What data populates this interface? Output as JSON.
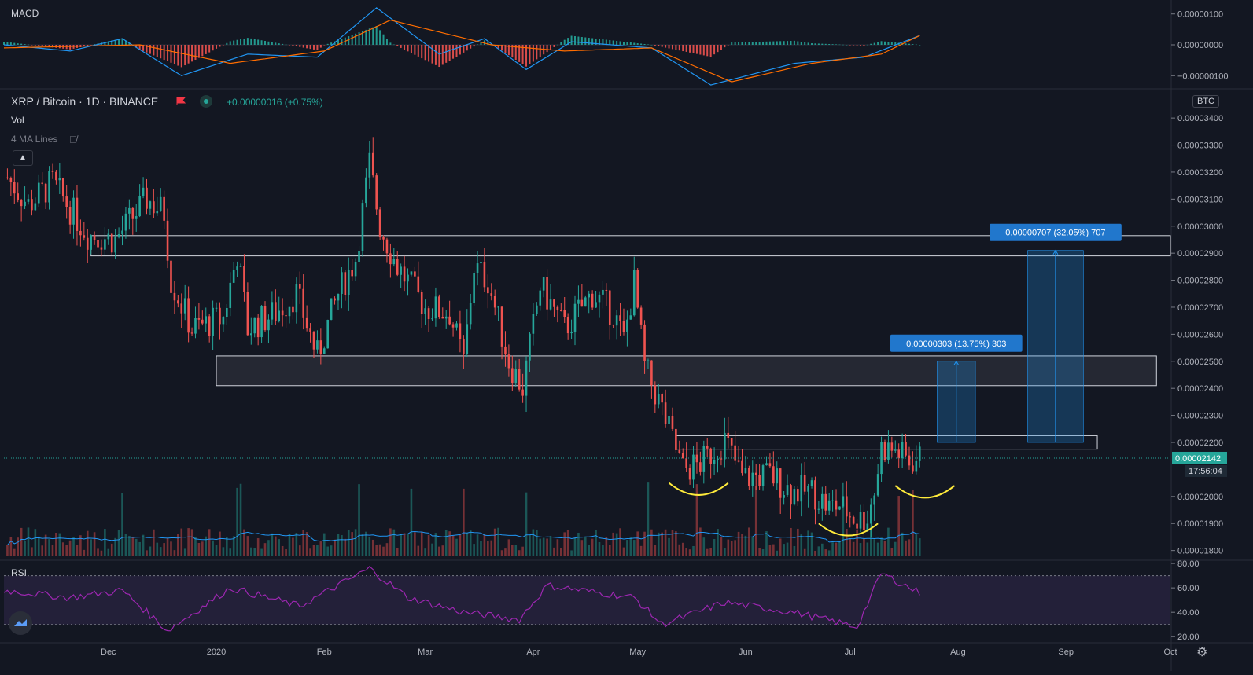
{
  "header": {
    "title": "XRP / Bitcoin · 1D · BINANCE",
    "change": "+0.00000016 (+0.75%)",
    "vol_label": "Vol",
    "ma_label": "4 MA Lines",
    "macd_label": "MACD",
    "rsi_label": "RSI",
    "currency": "BTC"
  },
  "colors": {
    "background": "#131722",
    "up": "#26a69a",
    "down": "#ef5350",
    "macd_line": "#2196f3",
    "signal_line": "#ff6d00",
    "rsi_line": "#9c27b0",
    "annotation": "#ffeb3b",
    "label_box": "#2177cc"
  },
  "chart_data": [
    {
      "type": "candlestick",
      "name": "XRP / Bitcoin 1D",
      "y_ticks": [
        "0.00003400",
        "0.00003300",
        "0.00003200",
        "0.00003100",
        "0.00003000",
        "0.00002900",
        "0.00002800",
        "0.00002700",
        "0.00002600",
        "0.00002500",
        "0.00002400",
        "0.00002300",
        "0.00002200",
        "0.00002000",
        "0.00001900",
        "0.00001800"
      ],
      "y_tick_values": [
        3.4e-05,
        3.3e-05,
        3.2e-05,
        3.1e-05,
        3e-05,
        2.9e-05,
        2.8e-05,
        2.7e-05,
        2.6e-05,
        2.5e-05,
        2.4e-05,
        2.3e-05,
        2.2e-05,
        2e-05,
        1.9e-05,
        1.8e-05
      ],
      "ylim": [
        1.767e-05,
        3.505e-05
      ],
      "x_labels": [
        "Dec",
        "2020",
        "Feb",
        "Mar",
        "Apr",
        "May",
        "Jun",
        "Jul",
        "Aug",
        "Sep",
        "Oct"
      ],
      "x_label_dates": [
        "2019-12-01",
        "2020-01-01",
        "2020-02-01",
        "2020-03-01",
        "2020-04-01",
        "2020-05-01",
        "2020-06-01",
        "2020-07-01",
        "2020-08-01",
        "2020-09-01",
        "2020-10-01"
      ],
      "xlim": [
        "2019-11-01",
        "2020-10-01"
      ],
      "current_price": "0.00002142",
      "current_price_value": 2.142e-05,
      "countdown": "17:56:04",
      "close_path": [
        {
          "d": "2019-11-02",
          "v": 3.18e-05
        },
        {
          "d": "2019-11-08",
          "v": 3.08e-05
        },
        {
          "d": "2019-11-15",
          "v": 3.16e-05
        },
        {
          "d": "2019-11-25",
          "v": 2.97e-05
        },
        {
          "d": "2019-12-03",
          "v": 2.95e-05
        },
        {
          "d": "2019-12-12",
          "v": 3.1e-05
        },
        {
          "d": "2019-12-17",
          "v": 3.05e-05
        },
        {
          "d": "2019-12-19",
          "v": 2.8e-05
        },
        {
          "d": "2019-12-25",
          "v": 2.62e-05
        },
        {
          "d": "2020-01-03",
          "v": 2.66e-05
        },
        {
          "d": "2020-01-07",
          "v": 2.9e-05
        },
        {
          "d": "2020-01-10",
          "v": 2.62e-05
        },
        {
          "d": "2020-01-18",
          "v": 2.68e-05
        },
        {
          "d": "2020-01-24",
          "v": 2.75e-05
        },
        {
          "d": "2020-01-30",
          "v": 2.52e-05
        },
        {
          "d": "2020-02-05",
          "v": 2.75e-05
        },
        {
          "d": "2020-02-10",
          "v": 2.88e-05
        },
        {
          "d": "2020-02-14",
          "v": 3.23e-05
        },
        {
          "d": "2020-02-17",
          "v": 3e-05
        },
        {
          "d": "2020-02-22",
          "v": 2.85e-05
        },
        {
          "d": "2020-03-01",
          "v": 2.7e-05
        },
        {
          "d": "2020-03-08",
          "v": 2.68e-05
        },
        {
          "d": "2020-03-12",
          "v": 2.5e-05
        },
        {
          "d": "2020-03-15",
          "v": 2.85e-05
        },
        {
          "d": "2020-03-19",
          "v": 2.8e-05
        },
        {
          "d": "2020-03-25",
          "v": 2.5e-05
        },
        {
          "d": "2020-03-29",
          "v": 2.4e-05
        },
        {
          "d": "2020-04-03",
          "v": 2.78e-05
        },
        {
          "d": "2020-04-10",
          "v": 2.62e-05
        },
        {
          "d": "2020-04-18",
          "v": 2.75e-05
        },
        {
          "d": "2020-04-24",
          "v": 2.68e-05
        },
        {
          "d": "2020-04-27",
          "v": 2.58e-05
        },
        {
          "d": "2020-04-30",
          "v": 2.79e-05
        },
        {
          "d": "2020-05-03",
          "v": 2.48e-05
        },
        {
          "d": "2020-05-08",
          "v": 2.32e-05
        },
        {
          "d": "2020-05-14",
          "v": 2.1e-05
        },
        {
          "d": "2020-05-19",
          "v": 2.12e-05
        },
        {
          "d": "2020-05-26",
          "v": 2.21e-05
        },
        {
          "d": "2020-05-31",
          "v": 2.07e-05
        },
        {
          "d": "2020-06-08",
          "v": 2.08e-05
        },
        {
          "d": "2020-06-14",
          "v": 2.02e-05
        },
        {
          "d": "2020-06-20",
          "v": 2.02e-05
        },
        {
          "d": "2020-06-25",
          "v": 1.96e-05
        },
        {
          "d": "2020-06-28",
          "v": 1.97e-05
        },
        {
          "d": "2020-07-03",
          "v": 1.91e-05
        },
        {
          "d": "2020-07-06",
          "v": 1.93e-05
        },
        {
          "d": "2020-07-08",
          "v": 2.02e-05
        },
        {
          "d": "2020-07-10",
          "v": 2.18e-05
        },
        {
          "d": "2020-07-14",
          "v": 2.17e-05
        },
        {
          "d": "2020-07-18",
          "v": 2.13e-05
        },
        {
          "d": "2020-07-21",
          "v": 2.14e-05
        }
      ],
      "zones": [
        {
          "x0": "2019-11-26",
          "x1": "2020-10-01",
          "y0": 2.89e-05,
          "y1": 2.965e-05,
          "filled": false
        },
        {
          "x0": "2020-01-01",
          "x1": "2020-09-27",
          "y0": 2.41e-05,
          "y1": 2.52e-05,
          "filled": true
        },
        {
          "x0": "2020-05-12",
          "x1": "2020-09-10",
          "y0": 2.175e-05,
          "y1": 2.225e-05,
          "filled": false
        }
      ],
      "measures": [
        {
          "label": "0.00000303 (13.75%) 303",
          "x0": "2020-07-26",
          "x1": "2020-08-06",
          "y_low": 2.2e-05,
          "y_high": 2.5e-05
        },
        {
          "label": "0.00000707 (32.05%) 707",
          "x0": "2020-08-21",
          "x1": "2020-09-06",
          "y_low": 2.2e-05,
          "y_high": 2.91e-05
        }
      ],
      "annotations": [
        {
          "x0": "2020-05-10",
          "x1": "2020-05-27",
          "y_high": 2.05e-05,
          "y_low": 2.01e-05
        },
        {
          "x0": "2020-06-22",
          "x1": "2020-07-09",
          "y_high": 1.9e-05,
          "y_low": 1.86e-05
        },
        {
          "x0": "2020-07-14",
          "x1": "2020-07-31",
          "y_high": 2.04e-05,
          "y_low": 2e-05
        }
      ]
    },
    {
      "type": "line",
      "name": "MACD",
      "y_ticks": [
        "0.00000100",
        "0.00000000",
        "−0.00000100"
      ],
      "y_tick_values": [
        1e-06,
        0,
        -1e-06
      ],
      "ylim": [
        -1.4e-06,
        1.4e-06
      ],
      "macd_path": [
        {
          "d": "2019-11-01",
          "v": 0.0
        },
        {
          "d": "2019-11-20",
          "v": -2e-07
        },
        {
          "d": "2019-12-05",
          "v": 2e-07
        },
        {
          "d": "2019-12-22",
          "v": -1e-06
        },
        {
          "d": "2020-01-10",
          "v": -3e-07
        },
        {
          "d": "2020-01-30",
          "v": -4e-07
        },
        {
          "d": "2020-02-16",
          "v": 1.2e-06
        },
        {
          "d": "2020-03-05",
          "v": -3e-07
        },
        {
          "d": "2020-03-18",
          "v": 2e-07
        },
        {
          "d": "2020-03-30",
          "v": -8e-07
        },
        {
          "d": "2020-04-12",
          "v": 1e-07
        },
        {
          "d": "2020-05-05",
          "v": -1e-07
        },
        {
          "d": "2020-05-22",
          "v": -1.3e-06
        },
        {
          "d": "2020-06-15",
          "v": -6e-07
        },
        {
          "d": "2020-07-05",
          "v": -4e-07
        },
        {
          "d": "2020-07-21",
          "v": 3e-07
        }
      ],
      "signal_path": [
        {
          "d": "2019-11-01",
          "v": -1e-07
        },
        {
          "d": "2019-12-10",
          "v": 0.0
        },
        {
          "d": "2020-01-05",
          "v": -6e-07
        },
        {
          "d": "2020-02-01",
          "v": -2e-07
        },
        {
          "d": "2020-02-20",
          "v": 8e-07
        },
        {
          "d": "2020-03-20",
          "v": 0.0
        },
        {
          "d": "2020-04-10",
          "v": -2e-07
        },
        {
          "d": "2020-05-05",
          "v": -1e-07
        },
        {
          "d": "2020-05-28",
          "v": -1.2e-06
        },
        {
          "d": "2020-06-20",
          "v": -6e-07
        },
        {
          "d": "2020-07-10",
          "v": -3e-07
        },
        {
          "d": "2020-07-21",
          "v": 3e-07
        }
      ]
    },
    {
      "type": "line",
      "name": "RSI",
      "y_ticks": [
        "80.00",
        "60.00",
        "40.00",
        "20.00"
      ],
      "y_tick_values": [
        80,
        60,
        40,
        20
      ],
      "ylim": [
        15,
        82
      ],
      "band": [
        30,
        70
      ],
      "rsi_path": [
        {
          "d": "2019-11-01",
          "v": 58
        },
        {
          "d": "2019-11-20",
          "v": 52
        },
        {
          "d": "2019-12-05",
          "v": 58
        },
        {
          "d": "2019-12-18",
          "v": 25
        },
        {
          "d": "2020-01-05",
          "v": 60
        },
        {
          "d": "2020-01-25",
          "v": 45
        },
        {
          "d": "2020-02-14",
          "v": 76
        },
        {
          "d": "2020-02-25",
          "v": 52
        },
        {
          "d": "2020-03-12",
          "v": 40
        },
        {
          "d": "2020-03-28",
          "v": 34
        },
        {
          "d": "2020-04-05",
          "v": 62
        },
        {
          "d": "2020-04-30",
          "v": 52
        },
        {
          "d": "2020-05-08",
          "v": 30
        },
        {
          "d": "2020-05-26",
          "v": 48
        },
        {
          "d": "2020-06-15",
          "v": 40
        },
        {
          "d": "2020-07-03",
          "v": 28
        },
        {
          "d": "2020-07-10",
          "v": 72
        },
        {
          "d": "2020-07-21",
          "v": 56
        }
      ]
    }
  ]
}
